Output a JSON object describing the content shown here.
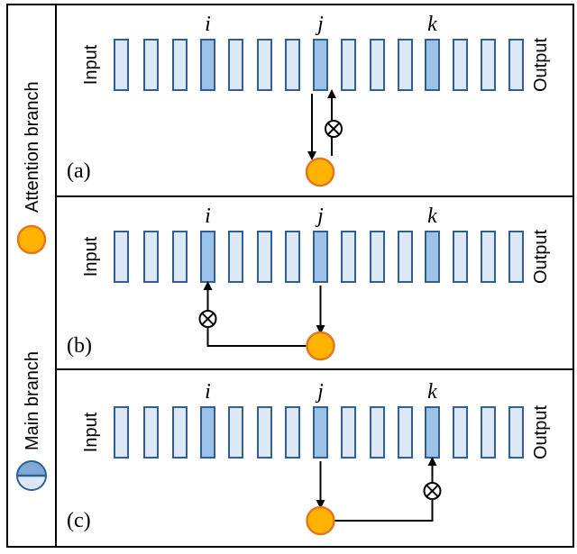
{
  "legend": {
    "attention_label": "Attention branch",
    "main_label": "Main branch"
  },
  "panels": [
    {
      "tag": "(a)",
      "left_label": "Input",
      "right_label": "Output",
      "markers": [
        "i",
        "j",
        "k"
      ]
    },
    {
      "tag": "(b)",
      "left_label": "Input",
      "right_label": "Output",
      "markers": [
        "i",
        "j",
        "k"
      ]
    },
    {
      "tag": "(c)",
      "left_label": "Input",
      "right_label": "Output",
      "markers": [
        "i",
        "j",
        "k"
      ]
    }
  ],
  "colors": {
    "block_light": "#dce8f6",
    "block_dark": "#9cc2e8",
    "block_stroke": "#2f5f93",
    "attention_fill": "#ffb300",
    "attention_stroke": "#e07820"
  },
  "icons": {
    "multiply": "circled-times-icon",
    "attention": "orange-circle-icon",
    "main": "half-blue-circle-icon"
  }
}
